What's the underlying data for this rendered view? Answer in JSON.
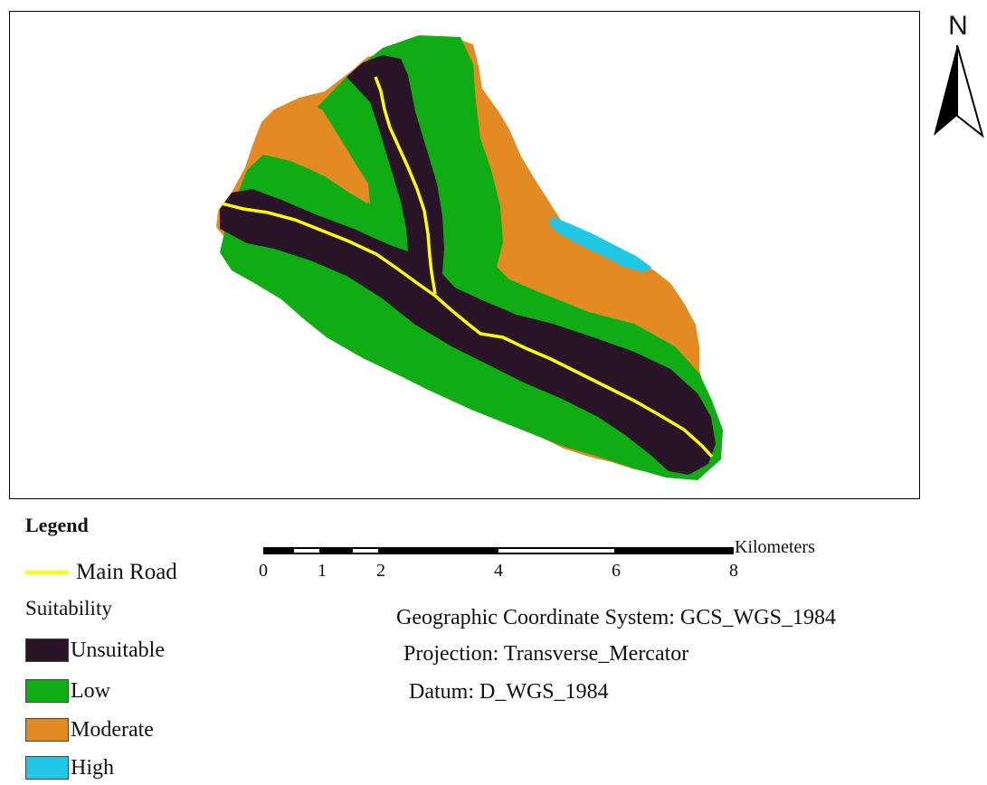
{
  "legend": {
    "title": "Legend",
    "road": {
      "label": "Main Road",
      "color": "#ffff00"
    },
    "suitability_heading": "Suitability",
    "classes": [
      {
        "label": "Unsuitable",
        "color": "#2a1528"
      },
      {
        "label": "Low",
        "color": "#0fac13"
      },
      {
        "label": "Moderate",
        "color": "#e48a22"
      },
      {
        "label": "High",
        "color": "#21c8e6"
      }
    ]
  },
  "scale_bar": {
    "unit": "Kilometers",
    "ticks": [
      "0",
      "1",
      "2",
      "4",
      "6",
      "8"
    ]
  },
  "north_arrow": {
    "letter": "N",
    "icon": "north-arrow-icon"
  },
  "coordinate_info": {
    "gcs": "Geographic Coordinate System: GCS_WGS_1984",
    "projection": "Projection: Transverse_Mercator",
    "datum": "Datum: D_WGS_1984"
  }
}
